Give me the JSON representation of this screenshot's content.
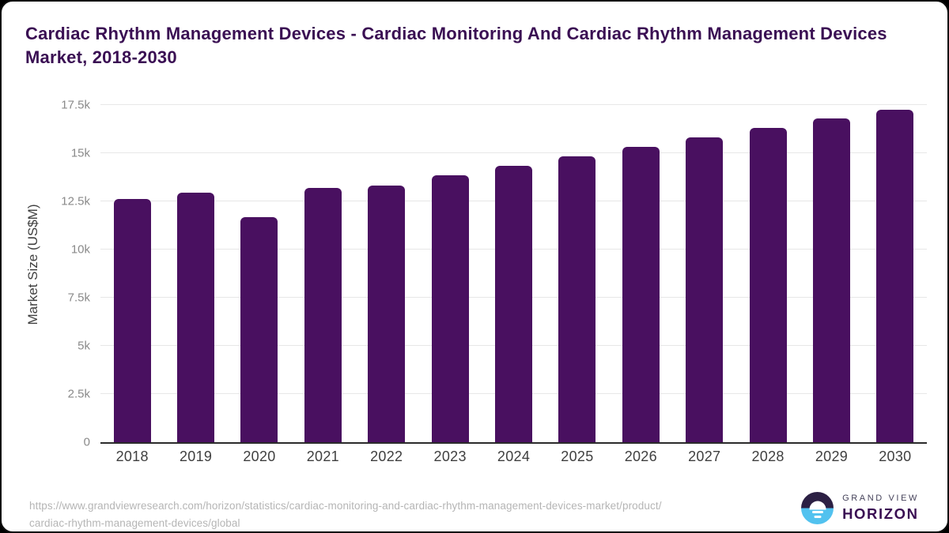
{
  "title": "Cardiac Rhythm Management Devices - Cardiac Monitoring And Cardiac Rhythm Management Devices Market, 2018-2030",
  "chart_data": {
    "type": "bar",
    "title": "Cardiac Rhythm Management Devices - Cardiac Monitoring And Cardiac Rhythm Management Devices Market, 2018-2030",
    "categories": [
      "2018",
      "2019",
      "2020",
      "2021",
      "2022",
      "2023",
      "2024",
      "2025",
      "2026",
      "2027",
      "2028",
      "2029",
      "2030"
    ],
    "values": [
      12650,
      12950,
      11680,
      13220,
      13350,
      13880,
      14360,
      14860,
      15330,
      15850,
      16340,
      16830,
      17270
    ],
    "xlabel": "",
    "ylabel": "Market Size (US$M)",
    "ylim": [
      0,
      17970
    ],
    "yticks": [
      {
        "label": "0",
        "value": 0
      },
      {
        "label": "2.5k",
        "value": 2500
      },
      {
        "label": "5k",
        "value": 5000
      },
      {
        "label": "7.5k",
        "value": 7500
      },
      {
        "label": "10k",
        "value": 10000
      },
      {
        "label": "12.5k",
        "value": 12500
      },
      {
        "label": "15k",
        "value": 15000
      },
      {
        "label": "17.5k",
        "value": 17500
      }
    ],
    "grid": true,
    "legend": false,
    "bar_color": "#491060"
  },
  "footer": {
    "source_url_line1": "https://www.grandviewresearch.com/horizon/statistics/cardiac-monitoring-and-cardiac-rhythm-management-devices-market/product/",
    "source_url_line2": "cardiac-rhythm-management-devices/global",
    "logo": {
      "icon": "grand-view-horizon-logo-icon",
      "text_top": "GRAND VIEW",
      "text_bottom": "HORIZON"
    }
  },
  "colors": {
    "title": "#3a0f53",
    "bar": "#491060",
    "grid": "#e7e7e7",
    "axis": "#2b2b2b",
    "ytick": "#8a8a8a",
    "xtick": "#3f3f3f",
    "url": "#b5b5b5",
    "logo-dark": "#2c2044",
    "logo-blue": "#52c2ef",
    "logo-gray": "#45425a",
    "logo-purple": "#3a0f53"
  }
}
